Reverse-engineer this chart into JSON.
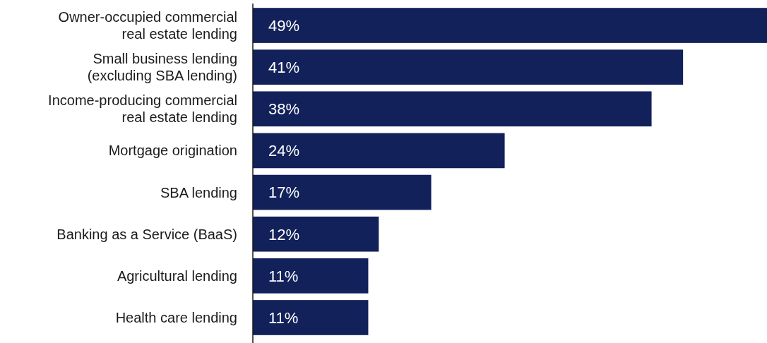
{
  "chart_data": {
    "type": "bar",
    "orientation": "horizontal",
    "categories": [
      "Owner-occupied commercial real estate lending",
      "Small business lending (excluding SBA lending)",
      "Income-producing commercial real estate lending",
      "Mortgage origination",
      "SBA lending",
      "Banking as a Service (BaaS)",
      "Agricultural lending",
      "Health care lending"
    ],
    "values": [
      49,
      41,
      38,
      24,
      17,
      12,
      11,
      11
    ],
    "value_labels": [
      "49%",
      "41%",
      "38%",
      "24%",
      "17%",
      "12%",
      "11%",
      "11%"
    ],
    "color": "#12215a"
  }
}
